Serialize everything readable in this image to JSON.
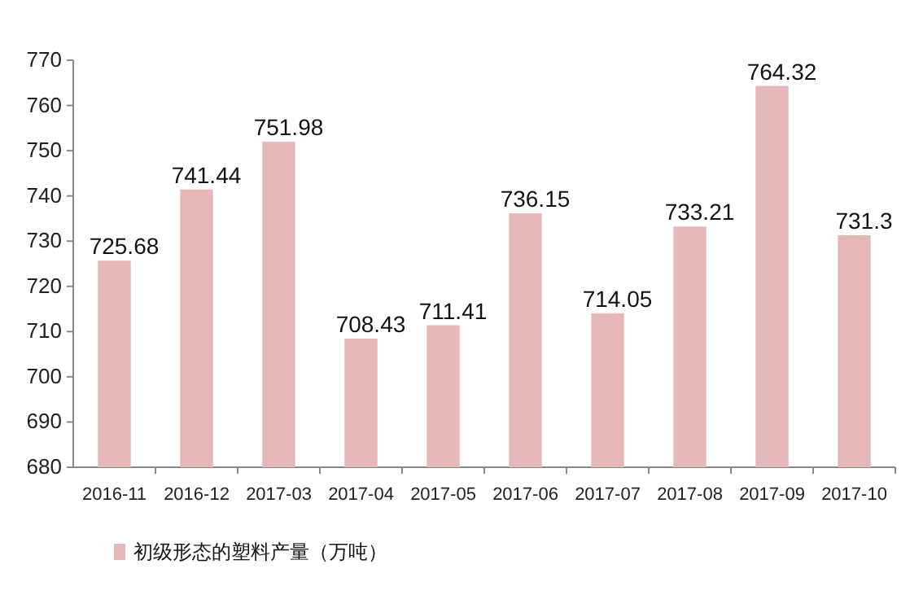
{
  "chart_data": {
    "type": "bar",
    "categories": [
      "2016-11",
      "2016-12",
      "2017-03",
      "2017-04",
      "2017-05",
      "2017-06",
      "2017-07",
      "2017-08",
      "2017-09",
      "2017-10"
    ],
    "series": [
      {
        "name": "初级形态的塑料产量（万吨）",
        "color": "#e6b9b8",
        "values": [
          725.68,
          741.44,
          751.98,
          708.43,
          711.41,
          736.15,
          714.05,
          733.21,
          764.32,
          731.3
        ]
      }
    ],
    "ylim": [
      680,
      770
    ],
    "yticks": [
      680,
      690,
      700,
      710,
      720,
      730,
      740,
      750,
      760,
      770
    ],
    "data_labels": true,
    "legend": "bottom left"
  }
}
